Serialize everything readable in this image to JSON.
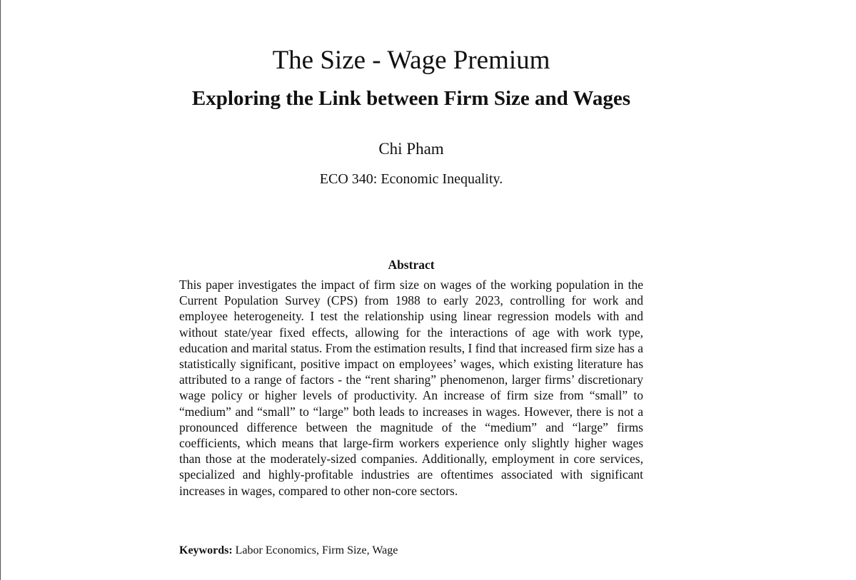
{
  "paper": {
    "title": "The Size - Wage Premium",
    "subtitle": "Exploring the Link between Firm Size and Wages",
    "author": "Chi Pham",
    "affiliation": "ECO 340: Economic Inequality.",
    "abstract_heading": "Abstract",
    "abstract_text": "This paper investigates the impact of firm size on wages of the working population in the Current Population Survey (CPS) from 1988 to early 2023, controlling for work and employee heterogeneity. I test the relationship using linear regression models with and without state/year fixed effects, allowing for the interactions of age with work type, education and marital status. From the estimation results, I find that increased firm size has a statistically significant, positive impact on employees’ wages, which existing literature has attributed to a range of factors - the “rent sharing” phenomenon, larger firms’ discretionary wage policy or higher levels of productivity. An increase of firm size from “small” to “medium” and “small” to “large” both leads to increases in wages. However, there is not a pronounced difference between the magnitude of the “medium” and “large” firms coefficients, which means that large-firm workers experience only slightly higher wages than those at the moderately-sized companies. Additionally, employment in core services, specialized and highly-profitable industries are oftentimes associated with significant increases in wages, compared to other non-core sectors.",
    "keywords_label": "Keywords:",
    "keywords": "Labor Economics, Firm Size, Wage"
  }
}
